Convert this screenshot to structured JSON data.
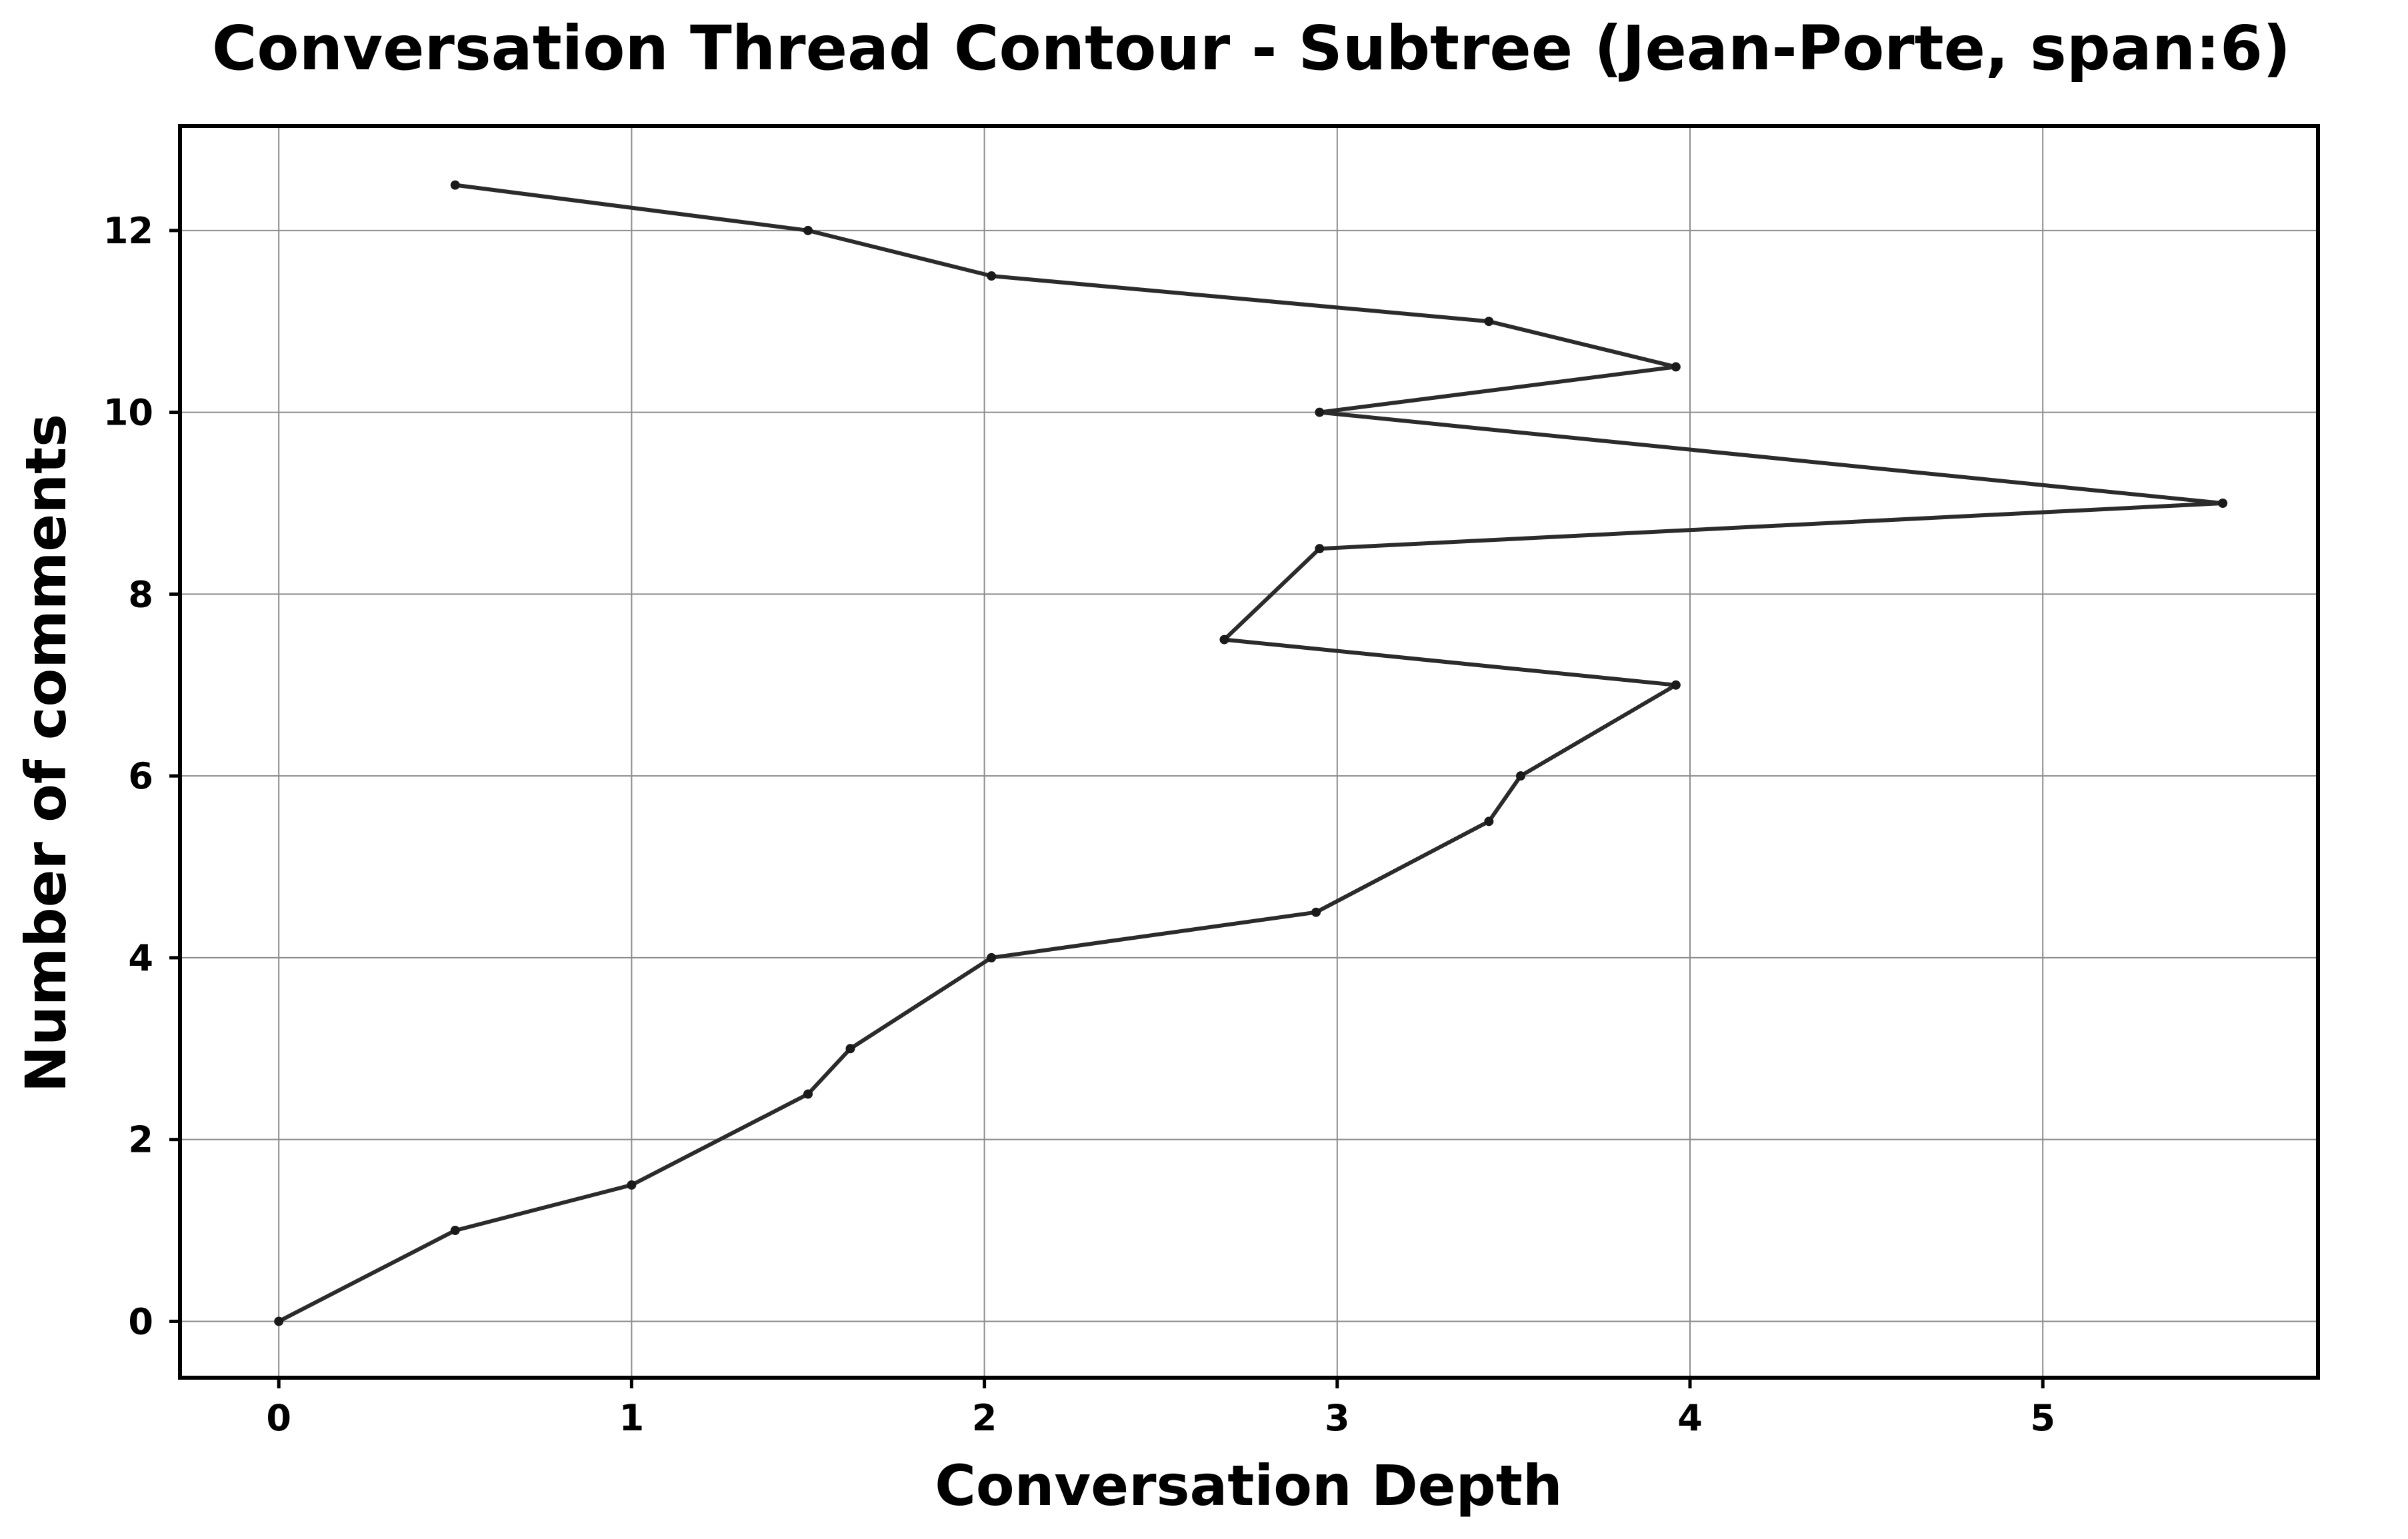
{
  "chart_data": {
    "type": "line",
    "title": "Conversation Thread Contour  - Subtree (Jean-Porte, span:6)",
    "xlabel": "Conversation Depth",
    "ylabel": "Number of comments",
    "xlim": [
      -0.28,
      5.78
    ],
    "ylim": [
      -0.62,
      13.15
    ],
    "xticks": [
      0,
      1,
      2,
      3,
      4,
      5
    ],
    "yticks": [
      0,
      2,
      4,
      6,
      8,
      10,
      12
    ],
    "grid": true,
    "series": [
      {
        "color": "#2b2b2b",
        "points": [
          {
            "x": 0.0,
            "y": 0.0
          },
          {
            "x": 0.5,
            "y": 1.0
          },
          {
            "x": 1.0,
            "y": 1.5
          },
          {
            "x": 1.5,
            "y": 2.5
          },
          {
            "x": 1.62,
            "y": 3.0
          },
          {
            "x": 2.02,
            "y": 4.0
          },
          {
            "x": 2.94,
            "y": 4.5
          },
          {
            "x": 3.43,
            "y": 5.5
          },
          {
            "x": 3.52,
            "y": 6.0
          },
          {
            "x": 3.96,
            "y": 7.0
          },
          {
            "x": 2.68,
            "y": 7.5
          },
          {
            "x": 2.95,
            "y": 8.5
          },
          {
            "x": 5.51,
            "y": 9.0
          },
          {
            "x": 2.95,
            "y": 10.0
          },
          {
            "x": 3.96,
            "y": 10.5
          },
          {
            "x": 3.43,
            "y": 11.0
          },
          {
            "x": 2.02,
            "y": 11.5
          },
          {
            "x": 1.5,
            "y": 12.0
          },
          {
            "x": 0.5,
            "y": 12.5
          }
        ]
      }
    ]
  }
}
